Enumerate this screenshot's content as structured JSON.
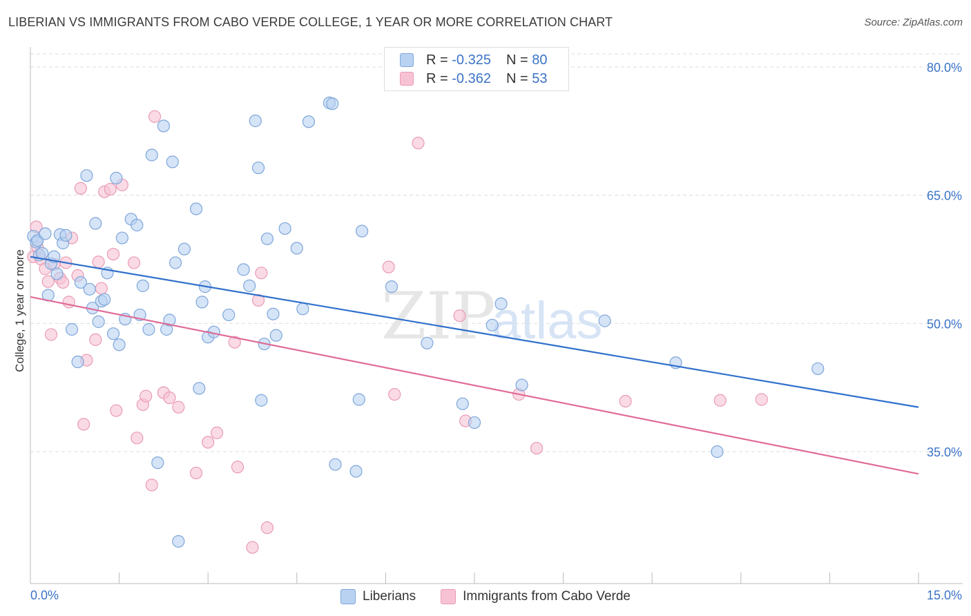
{
  "header": {
    "title": "LIBERIAN VS IMMIGRANTS FROM CABO VERDE COLLEGE, 1 YEAR OR MORE CORRELATION CHART",
    "source": "Source: ZipAtlas.com"
  },
  "legend": {
    "rows": [
      {
        "r_label": "R =",
        "r_value": "-0.325",
        "n_label": "N =",
        "n_value": "80"
      },
      {
        "r_label": "R =",
        "r_value": "-0.362",
        "n_label": "N =",
        "n_value": "53"
      }
    ],
    "bottom": [
      "Liberians",
      "Immigrants from Cabo Verde"
    ]
  },
  "watermark": {
    "zip": "ZIP",
    "atlas": "atlas"
  },
  "colors": {
    "blue_fill": "#b9d2f2",
    "blue_stroke": "#7ea6da",
    "blue_line": "#2f6fcc",
    "pink_fill": "#f7c3d4",
    "pink_stroke": "#e99ab4",
    "pink_line": "#e06b98",
    "axis_text": "#3b73c7",
    "grid": "#dcdcdc"
  },
  "chart_data": {
    "type": "scatter",
    "title": "LIBERIAN VS IMMIGRANTS FROM CABO VERDE COLLEGE, 1 YEAR OR MORE CORRELATION CHART",
    "xlabel": "",
    "ylabel": "College, 1 year or more",
    "xlim": [
      0,
      15
    ],
    "ylim": [
      20,
      82
    ],
    "x_tick_labels": [
      "0.0%",
      "15.0%"
    ],
    "y_ticks": [
      35,
      50,
      65,
      80
    ],
    "y_tick_labels": [
      "35.0%",
      "50.0%",
      "65.0%",
      "80.0%"
    ],
    "legend_position": "top-center",
    "series": [
      {
        "name": "Liberians",
        "R": -0.325,
        "N": 80,
        "trend": {
          "x": [
            0,
            15
          ],
          "y": [
            57.8,
            40.2
          ]
        },
        "points": [
          [
            0.05,
            60.2
          ],
          [
            0.1,
            59.5
          ],
          [
            0.15,
            58.0
          ],
          [
            0.12,
            59.7
          ],
          [
            0.2,
            58.2
          ],
          [
            0.25,
            60.5
          ],
          [
            0.3,
            53.3
          ],
          [
            0.35,
            57.0
          ],
          [
            0.4,
            57.8
          ],
          [
            0.45,
            55.8
          ],
          [
            0.5,
            60.4
          ],
          [
            0.55,
            59.4
          ],
          [
            0.6,
            60.3
          ],
          [
            0.7,
            49.3
          ],
          [
            0.8,
            45.5
          ],
          [
            0.85,
            54.8
          ],
          [
            0.95,
            67.3
          ],
          [
            1.0,
            54.0
          ],
          [
            1.05,
            51.8
          ],
          [
            1.1,
            61.7
          ],
          [
            1.15,
            50.2
          ],
          [
            1.2,
            52.6
          ],
          [
            1.25,
            52.8
          ],
          [
            1.3,
            55.9
          ],
          [
            1.4,
            48.8
          ],
          [
            1.45,
            67.0
          ],
          [
            1.5,
            47.5
          ],
          [
            1.55,
            60.0
          ],
          [
            1.6,
            50.5
          ],
          [
            1.7,
            62.2
          ],
          [
            1.8,
            61.5
          ],
          [
            1.85,
            51.0
          ],
          [
            1.9,
            54.4
          ],
          [
            2.0,
            49.3
          ],
          [
            2.05,
            69.7
          ],
          [
            2.15,
            33.7
          ],
          [
            2.25,
            73.1
          ],
          [
            2.3,
            49.3
          ],
          [
            2.35,
            50.4
          ],
          [
            2.4,
            68.9
          ],
          [
            2.45,
            57.1
          ],
          [
            2.5,
            24.5
          ],
          [
            2.6,
            58.7
          ],
          [
            2.8,
            63.4
          ],
          [
            2.85,
            42.4
          ],
          [
            2.9,
            52.5
          ],
          [
            2.95,
            54.3
          ],
          [
            3.0,
            48.4
          ],
          [
            3.1,
            49.0
          ],
          [
            3.35,
            51.0
          ],
          [
            3.6,
            56.3
          ],
          [
            3.7,
            54.4
          ],
          [
            3.8,
            73.7
          ],
          [
            3.85,
            68.2
          ],
          [
            3.9,
            41.0
          ],
          [
            3.95,
            47.6
          ],
          [
            4.0,
            59.9
          ],
          [
            4.1,
            51.1
          ],
          [
            4.15,
            48.6
          ],
          [
            4.3,
            61.1
          ],
          [
            4.5,
            58.8
          ],
          [
            4.6,
            51.7
          ],
          [
            4.7,
            73.6
          ],
          [
            5.05,
            75.8
          ],
          [
            5.1,
            75.7
          ],
          [
            5.15,
            33.5
          ],
          [
            5.5,
            32.7
          ],
          [
            5.55,
            41.1
          ],
          [
            5.6,
            60.8
          ],
          [
            6.1,
            54.3
          ],
          [
            6.7,
            47.7
          ],
          [
            7.3,
            40.6
          ],
          [
            7.5,
            38.4
          ],
          [
            7.8,
            49.8
          ],
          [
            7.95,
            52.3
          ],
          [
            8.3,
            42.8
          ],
          [
            9.7,
            50.3
          ],
          [
            10.9,
            45.4
          ],
          [
            11.6,
            35.0
          ],
          [
            13.3,
            44.7
          ]
        ]
      },
      {
        "name": "Immigrants from Cabo Verde",
        "R": -0.362,
        "N": 53,
        "trend": {
          "x": [
            0,
            15
          ],
          "y": [
            53.1,
            32.4
          ]
        },
        "points": [
          [
            0.05,
            57.8
          ],
          [
            0.1,
            61.3
          ],
          [
            0.12,
            58.9
          ],
          [
            0.18,
            57.5
          ],
          [
            0.25,
            56.4
          ],
          [
            0.3,
            54.9
          ],
          [
            0.35,
            48.7
          ],
          [
            0.4,
            56.9
          ],
          [
            0.5,
            55.3
          ],
          [
            0.55,
            54.8
          ],
          [
            0.6,
            57.1
          ],
          [
            0.65,
            52.5
          ],
          [
            0.7,
            60.0
          ],
          [
            0.8,
            55.6
          ],
          [
            0.85,
            65.8
          ],
          [
            0.9,
            38.2
          ],
          [
            0.95,
            45.7
          ],
          [
            1.1,
            48.1
          ],
          [
            1.15,
            57.2
          ],
          [
            1.2,
            54.1
          ],
          [
            1.25,
            65.4
          ],
          [
            1.35,
            65.7
          ],
          [
            1.4,
            58.1
          ],
          [
            1.45,
            39.8
          ],
          [
            1.55,
            66.2
          ],
          [
            1.75,
            57.1
          ],
          [
            1.8,
            36.6
          ],
          [
            1.9,
            40.5
          ],
          [
            1.95,
            41.5
          ],
          [
            2.05,
            31.1
          ],
          [
            2.1,
            74.2
          ],
          [
            2.25,
            41.9
          ],
          [
            2.35,
            41.3
          ],
          [
            2.5,
            40.2
          ],
          [
            2.8,
            32.5
          ],
          [
            3.0,
            36.1
          ],
          [
            3.15,
            37.2
          ],
          [
            3.45,
            47.8
          ],
          [
            3.5,
            33.2
          ],
          [
            3.75,
            23.8
          ],
          [
            3.85,
            52.7
          ],
          [
            3.9,
            55.9
          ],
          [
            4.0,
            26.1
          ],
          [
            6.05,
            56.6
          ],
          [
            6.15,
            41.7
          ],
          [
            6.55,
            71.1
          ],
          [
            7.25,
            50.9
          ],
          [
            7.35,
            38.6
          ],
          [
            8.25,
            41.7
          ],
          [
            8.55,
            35.4
          ],
          [
            10.05,
            40.9
          ],
          [
            11.65,
            41.0
          ],
          [
            12.35,
            41.1
          ]
        ]
      }
    ]
  }
}
